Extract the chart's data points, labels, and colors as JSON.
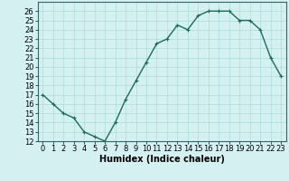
{
  "xlabel": "Humidex (Indice chaleur)",
  "ylabel": "",
  "x": [
    0,
    1,
    2,
    3,
    4,
    5,
    6,
    7,
    8,
    9,
    10,
    11,
    12,
    13,
    14,
    15,
    16,
    17,
    18,
    19,
    20,
    21,
    22,
    23
  ],
  "y": [
    17,
    16,
    15,
    14.5,
    13,
    12.5,
    12,
    14,
    16.5,
    18.5,
    20.5,
    22.5,
    23,
    24.5,
    24,
    25.5,
    26,
    26,
    26,
    25,
    25,
    24,
    21,
    19
  ],
  "line_color": "#1a6b5a",
  "marker": "+",
  "marker_size": 3,
  "bg_color": "#d4f0f0",
  "grid_color": "#aadddd",
  "ylim": [
    12,
    27
  ],
  "xlim": [
    -0.5,
    23.5
  ],
  "yticks": [
    12,
    13,
    14,
    15,
    16,
    17,
    18,
    19,
    20,
    21,
    22,
    23,
    24,
    25,
    26
  ],
  "xticks": [
    0,
    1,
    2,
    3,
    4,
    5,
    6,
    7,
    8,
    9,
    10,
    11,
    12,
    13,
    14,
    15,
    16,
    17,
    18,
    19,
    20,
    21,
    22,
    23
  ],
  "xlabel_fontsize": 7,
  "tick_fontsize": 6,
  "line_width": 1.0
}
